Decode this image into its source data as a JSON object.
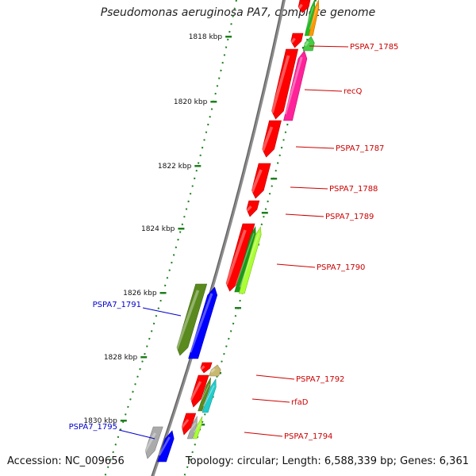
{
  "title": "Pseudomonas aeruginosa PA7, complete genome",
  "accession": "Accession: NC_009656",
  "stats": "Topology: circular; Length: 6,588,339 bp; Genes: 6,361",
  "colors": {
    "backbone": "#8c8c8c",
    "tick": "#1f7f1f",
    "right_label": "#cc0000",
    "left_label": "#0000cc"
  },
  "ticks": [
    "1818 kbp",
    "1820 kbp",
    "1822 kbp",
    "1824 kbp",
    "1826 kbp",
    "1828 kbp",
    "1830 kbp"
  ],
  "genes": [
    {
      "name": "",
      "color": "#ff0000",
      "strand": "minus"
    },
    {
      "name": "",
      "color": "#22bb22",
      "strand": "plus"
    },
    {
      "name": "",
      "color": "#ff9900",
      "strand": "plus"
    },
    {
      "name": "",
      "color": "#ff0000",
      "strand": "minus"
    },
    {
      "name": "PSPA7_1785",
      "color": "#44cc44",
      "strand": "plus"
    },
    {
      "name": "",
      "color": "#ff0000",
      "strand": "minus"
    },
    {
      "name": "recQ",
      "color": "#ff2299",
      "strand": "plus"
    },
    {
      "name": "PSPA7_1787",
      "color": "#ff0000",
      "strand": "minus"
    },
    {
      "name": "PSPA7_1788",
      "color": "#ff0000",
      "strand": "minus"
    },
    {
      "name": "PSPA7_1789",
      "color": "#ff0000",
      "strand": "minus"
    },
    {
      "name": "",
      "color": "#ff0000",
      "strand": "minus"
    },
    {
      "name": "",
      "color": "#1a9a1a",
      "strand": "plus"
    },
    {
      "name": "PSPA7_1790",
      "color": "#aaff33",
      "strand": "plus"
    },
    {
      "name": "PSPA7_1791",
      "color": "#5a8a1e",
      "strand": "minus"
    },
    {
      "name": "",
      "color": "#0000ff",
      "strand": "plus"
    },
    {
      "name": "",
      "color": "#ff0000",
      "strand": "minus"
    },
    {
      "name": "PSPA7_1792",
      "color": "#c8b870",
      "strand": "plus"
    },
    {
      "name": "",
      "color": "#ff0000",
      "strand": "minus"
    },
    {
      "name": "",
      "color": "#5a8a1e",
      "strand": "plus"
    },
    {
      "name": "rfaD",
      "color": "#22cccc",
      "strand": "plus"
    },
    {
      "name": "",
      "color": "#ff0000",
      "strand": "minus"
    },
    {
      "name": "",
      "color": "#aaaaaa",
      "strand": "plus"
    },
    {
      "name": "PSPA7_1794",
      "color": "#aaff33",
      "strand": "plus"
    },
    {
      "name": "PSPA7_1795",
      "color": "#aaaaaa",
      "strand": "minus"
    },
    {
      "name": "",
      "color": "#0000ff",
      "strand": "plus"
    }
  ]
}
